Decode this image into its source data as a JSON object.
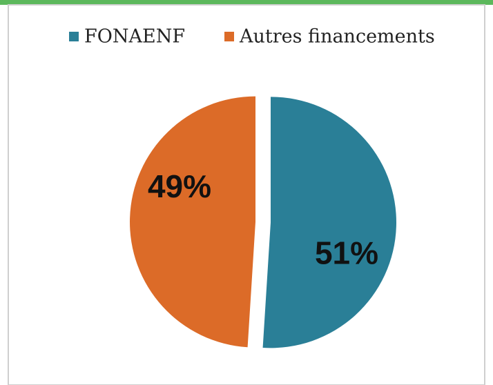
{
  "chart_data": {
    "type": "pie",
    "categories": [
      "FONAENF",
      "Autres financements"
    ],
    "values": [
      51,
      49
    ],
    "value_labels": [
      "51%",
      "49%"
    ],
    "colors": [
      "#2a7f97",
      "#dc6b28"
    ]
  }
}
